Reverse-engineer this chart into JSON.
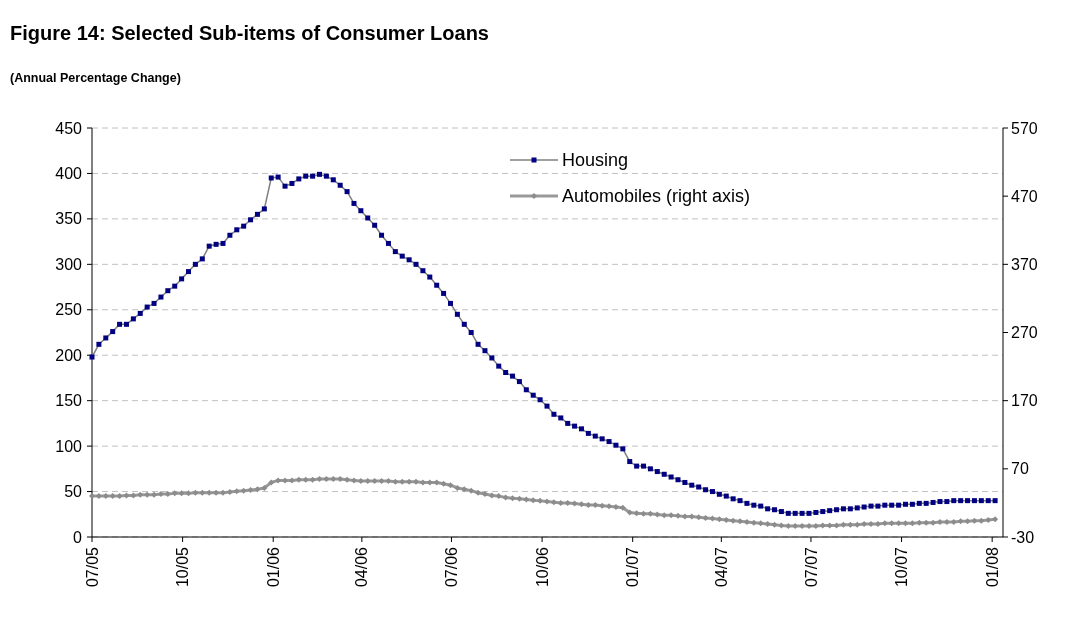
{
  "chart_data": {
    "type": "line",
    "title": "Figure 14: Selected Sub-items of Consumer Loans",
    "subtitle": "(Annual Percentage Change)",
    "x": [
      "2005-07-01",
      "2005-07-08",
      "2005-07-15",
      "2005-07-22",
      "2005-07-29",
      "2005-08-05",
      "2005-08-12",
      "2005-08-19",
      "2005-08-26",
      "2005-09-02",
      "2005-09-09",
      "2005-09-16",
      "2005-09-23",
      "2005-09-30",
      "2005-10-07",
      "2005-10-14",
      "2005-10-21",
      "2005-10-28",
      "2005-11-04",
      "2005-11-11",
      "2005-11-18",
      "2005-11-25",
      "2005-12-02",
      "2005-12-09",
      "2005-12-16",
      "2005-12-23",
      "2005-12-30",
      "2006-01-06",
      "2006-01-13",
      "2006-01-20",
      "2006-01-27",
      "2006-02-03",
      "2006-02-10",
      "2006-02-17",
      "2006-02-24",
      "2006-03-03",
      "2006-03-10",
      "2006-03-17",
      "2006-03-24",
      "2006-03-31",
      "2006-04-07",
      "2006-04-14",
      "2006-04-21",
      "2006-04-28",
      "2006-05-05",
      "2006-05-12",
      "2006-05-19",
      "2006-05-26",
      "2006-06-02",
      "2006-06-09",
      "2006-06-16",
      "2006-06-23",
      "2006-06-30",
      "2006-07-07",
      "2006-07-14",
      "2006-07-21",
      "2006-07-28",
      "2006-08-04",
      "2006-08-11",
      "2006-08-18",
      "2006-08-25",
      "2006-09-01",
      "2006-09-08",
      "2006-09-15",
      "2006-09-22",
      "2006-09-29",
      "2006-10-06",
      "2006-10-13",
      "2006-10-20",
      "2006-10-27",
      "2006-11-03",
      "2006-11-10",
      "2006-11-17",
      "2006-11-24",
      "2006-12-01",
      "2006-12-08",
      "2006-12-15",
      "2006-12-22",
      "2006-12-29",
      "2007-01-05",
      "2007-01-12",
      "2007-01-19",
      "2007-01-26",
      "2007-02-02",
      "2007-02-09",
      "2007-02-16",
      "2007-02-23",
      "2007-03-02",
      "2007-03-09",
      "2007-03-16",
      "2007-03-23",
      "2007-03-30",
      "2007-04-06",
      "2007-04-13",
      "2007-04-20",
      "2007-04-27",
      "2007-05-04",
      "2007-05-11",
      "2007-05-18",
      "2007-05-25",
      "2007-06-01",
      "2007-06-08",
      "2007-06-15",
      "2007-06-22",
      "2007-06-29",
      "2007-07-06",
      "2007-07-13",
      "2007-07-20",
      "2007-07-27",
      "2007-08-03",
      "2007-08-10",
      "2007-08-17",
      "2007-08-24",
      "2007-08-31",
      "2007-09-07",
      "2007-09-14",
      "2007-09-21",
      "2007-09-28",
      "2007-10-05",
      "2007-10-12",
      "2007-10-19",
      "2007-10-26",
      "2007-11-02",
      "2007-11-09",
      "2007-11-16",
      "2007-11-23",
      "2007-11-30",
      "2007-12-07",
      "2007-12-14",
      "2007-12-21",
      "2007-12-28",
      "2008-01-04"
    ],
    "series": [
      {
        "name": "Housing",
        "color": "#000080",
        "marker": "square",
        "values": [
          198,
          212,
          219,
          226,
          234,
          234,
          240,
          246,
          253,
          257,
          264,
          271,
          276,
          284,
          292,
          300,
          306,
          320,
          322,
          323,
          332,
          338,
          342,
          349,
          355,
          361,
          395,
          396,
          386,
          389,
          394,
          397,
          397,
          399,
          397,
          393,
          387,
          380,
          367,
          359,
          351,
          343,
          332,
          323,
          314,
          309,
          305,
          300,
          293,
          286,
          277,
          268,
          257,
          245,
          234,
          225,
          212,
          205,
          197,
          188,
          181,
          177,
          171,
          162,
          156,
          151,
          144,
          135,
          131,
          125,
          122,
          119,
          114,
          111,
          108,
          105,
          101,
          97,
          83,
          78,
          78,
          75,
          72,
          69,
          66,
          63,
          60,
          57,
          55,
          52,
          50,
          47,
          45,
          42,
          40,
          37,
          35,
          34,
          31,
          30,
          28,
          26,
          26,
          26,
          26,
          27,
          28,
          29,
          30,
          31,
          31,
          32,
          33,
          34,
          34,
          35,
          35,
          35,
          36,
          36,
          37,
          37,
          38,
          39,
          39,
          40,
          40,
          40,
          40,
          40,
          40,
          40
        ]
      },
      {
        "name": "Automobiles (right axis)",
        "color": "#999999",
        "marker": "diamond",
        "axis": "y2",
        "values": [
          30,
          30,
          30,
          30,
          30,
          31,
          31,
          32,
          32,
          32,
          33,
          33,
          34,
          34,
          34,
          35,
          35,
          35,
          35,
          35,
          36,
          37,
          38,
          39,
          40,
          42,
          50,
          53,
          53,
          53,
          54,
          54,
          54,
          55,
          55,
          55,
          55,
          54,
          53,
          52,
          52,
          52,
          52,
          52,
          51,
          51,
          51,
          51,
          50,
          50,
          50,
          48,
          46,
          42,
          40,
          38,
          35,
          33,
          31,
          30,
          28,
          27,
          26,
          25,
          24,
          23,
          22,
          21,
          20,
          20,
          19,
          18,
          17,
          17,
          16,
          15,
          14,
          13,
          6,
          5,
          4,
          4,
          3,
          2,
          2,
          1,
          0,
          0,
          -1,
          -2,
          -3,
          -4,
          -5,
          -6,
          -7,
          -8,
          -9,
          -10,
          -11,
          -12,
          -13,
          -14,
          -14,
          -14,
          -14,
          -14,
          -13,
          -13,
          -13,
          -12,
          -12,
          -12,
          -11,
          -11,
          -11,
          -10,
          -10,
          -10,
          -10,
          -10,
          -9,
          -9,
          -9,
          -8,
          -8,
          -8,
          -7,
          -7,
          -6,
          -6,
          -5,
          -4
        ]
      }
    ],
    "xlim": [
      "2005-07-01",
      "2008-01-12"
    ],
    "xticks": [
      {
        "value": "2005-07-01",
        "label": "07/05"
      },
      {
        "value": "2005-10-01",
        "label": "10/05"
      },
      {
        "value": "2006-01-01",
        "label": "01/06"
      },
      {
        "value": "2006-04-01",
        "label": "04/06"
      },
      {
        "value": "2006-07-01",
        "label": "07/06"
      },
      {
        "value": "2006-10-01",
        "label": "10/06"
      },
      {
        "value": "2007-01-01",
        "label": "01/07"
      },
      {
        "value": "2007-04-01",
        "label": "04/07"
      },
      {
        "value": "2007-07-01",
        "label": "07/07"
      },
      {
        "value": "2007-10-01",
        "label": "10/07"
      },
      {
        "value": "2008-01-01",
        "label": "01/08"
      }
    ],
    "ylim": [
      0,
      450
    ],
    "yticks": [
      0,
      50,
      100,
      150,
      200,
      250,
      300,
      350,
      400,
      450
    ],
    "y2lim": [
      -30,
      570
    ],
    "y2ticks": [
      -30,
      70,
      170,
      270,
      370,
      470,
      570
    ],
    "grid": "y",
    "legend": "top"
  }
}
